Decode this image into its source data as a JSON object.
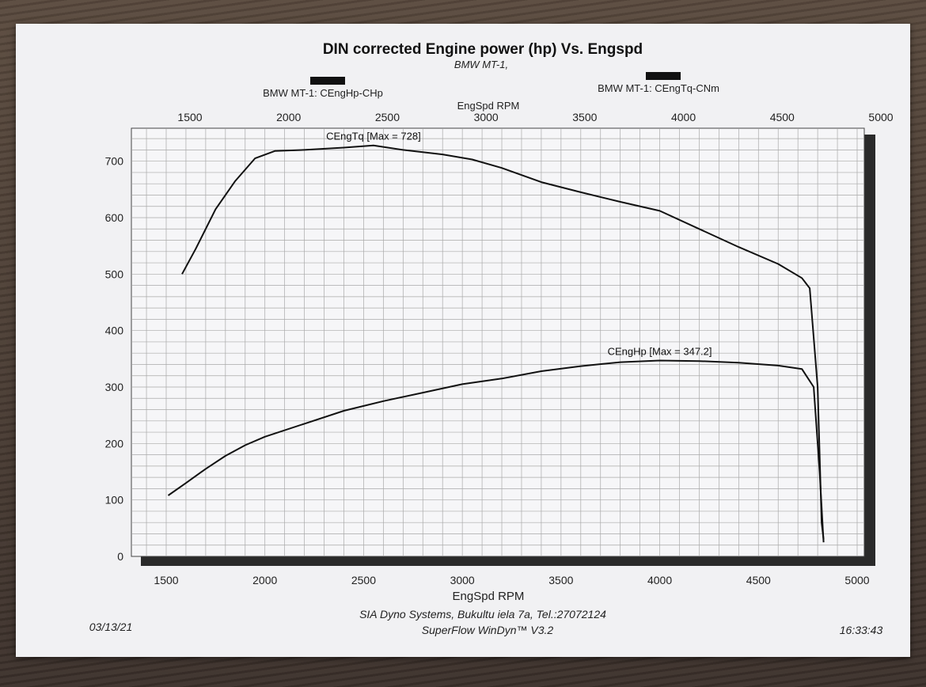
{
  "header": {
    "title": "DIN corrected Engine power (hp) Vs. Engspd",
    "subtitle": "BMW MT-1,",
    "legend_hp": "BMW MT-1: CEngHp-CHp",
    "legend_tq": "BMW MT-1: CEngTq-CNm",
    "top_axis_label": "EngSpd RPM"
  },
  "footer": {
    "date": "03/13/21",
    "company": "SIA Dyno Systems, Bukultu iela 7a, Tel.:27072124",
    "software": "SuperFlow WinDyn™ V3.2",
    "time": "16:33:43"
  },
  "chart_data": {
    "type": "line",
    "title": "DIN corrected Engine power (hp) Vs. Engspd",
    "subtitle": "BMW MT-1,",
    "xlabel": "EngSpd RPM",
    "ylabel": "",
    "xlim": [
      1500,
      5000
    ],
    "ylim": [
      0,
      750
    ],
    "x_ticks": [
      1500,
      2000,
      2500,
      3000,
      3500,
      4000,
      4500,
      5000
    ],
    "y_ticks": [
      0,
      100,
      200,
      300,
      400,
      500,
      600,
      700
    ],
    "top_x_ticks": [
      1500,
      2000,
      2500,
      3000,
      3500,
      4000,
      4500,
      5000
    ],
    "grid": true,
    "legend_position": "top",
    "series": [
      {
        "name": "BMW MT-1: CEngTq-CNm",
        "annotation": "CEngTq [Max = 728]",
        "color": "#111111",
        "points": [
          [
            1580,
            500
          ],
          [
            1650,
            545
          ],
          [
            1750,
            615
          ],
          [
            1850,
            665
          ],
          [
            1950,
            705
          ],
          [
            2050,
            718
          ],
          [
            2200,
            720
          ],
          [
            2400,
            724
          ],
          [
            2550,
            728
          ],
          [
            2700,
            720
          ],
          [
            2900,
            712
          ],
          [
            3050,
            703
          ],
          [
            3200,
            688
          ],
          [
            3400,
            663
          ],
          [
            3600,
            645
          ],
          [
            3800,
            628
          ],
          [
            4000,
            612
          ],
          [
            4200,
            580
          ],
          [
            4400,
            548
          ],
          [
            4600,
            518
          ],
          [
            4720,
            493
          ],
          [
            4760,
            475
          ],
          [
            4800,
            300
          ],
          [
            4820,
            60
          ],
          [
            4830,
            30
          ]
        ]
      },
      {
        "name": "BMW MT-1: CEngHp-CHp",
        "annotation": "CEngHp [Max = 347.2]",
        "color": "#111111",
        "points": [
          [
            1510,
            108
          ],
          [
            1600,
            130
          ],
          [
            1700,
            155
          ],
          [
            1800,
            178
          ],
          [
            1900,
            197
          ],
          [
            2000,
            212
          ],
          [
            2200,
            235
          ],
          [
            2400,
            258
          ],
          [
            2600,
            275
          ],
          [
            2800,
            290
          ],
          [
            3000,
            305
          ],
          [
            3200,
            315
          ],
          [
            3400,
            328
          ],
          [
            3600,
            337
          ],
          [
            3800,
            344
          ],
          [
            4000,
            347
          ],
          [
            4200,
            346
          ],
          [
            4400,
            343
          ],
          [
            4600,
            338
          ],
          [
            4720,
            332
          ],
          [
            4780,
            300
          ],
          [
            4810,
            150
          ],
          [
            4830,
            25
          ]
        ]
      }
    ]
  }
}
